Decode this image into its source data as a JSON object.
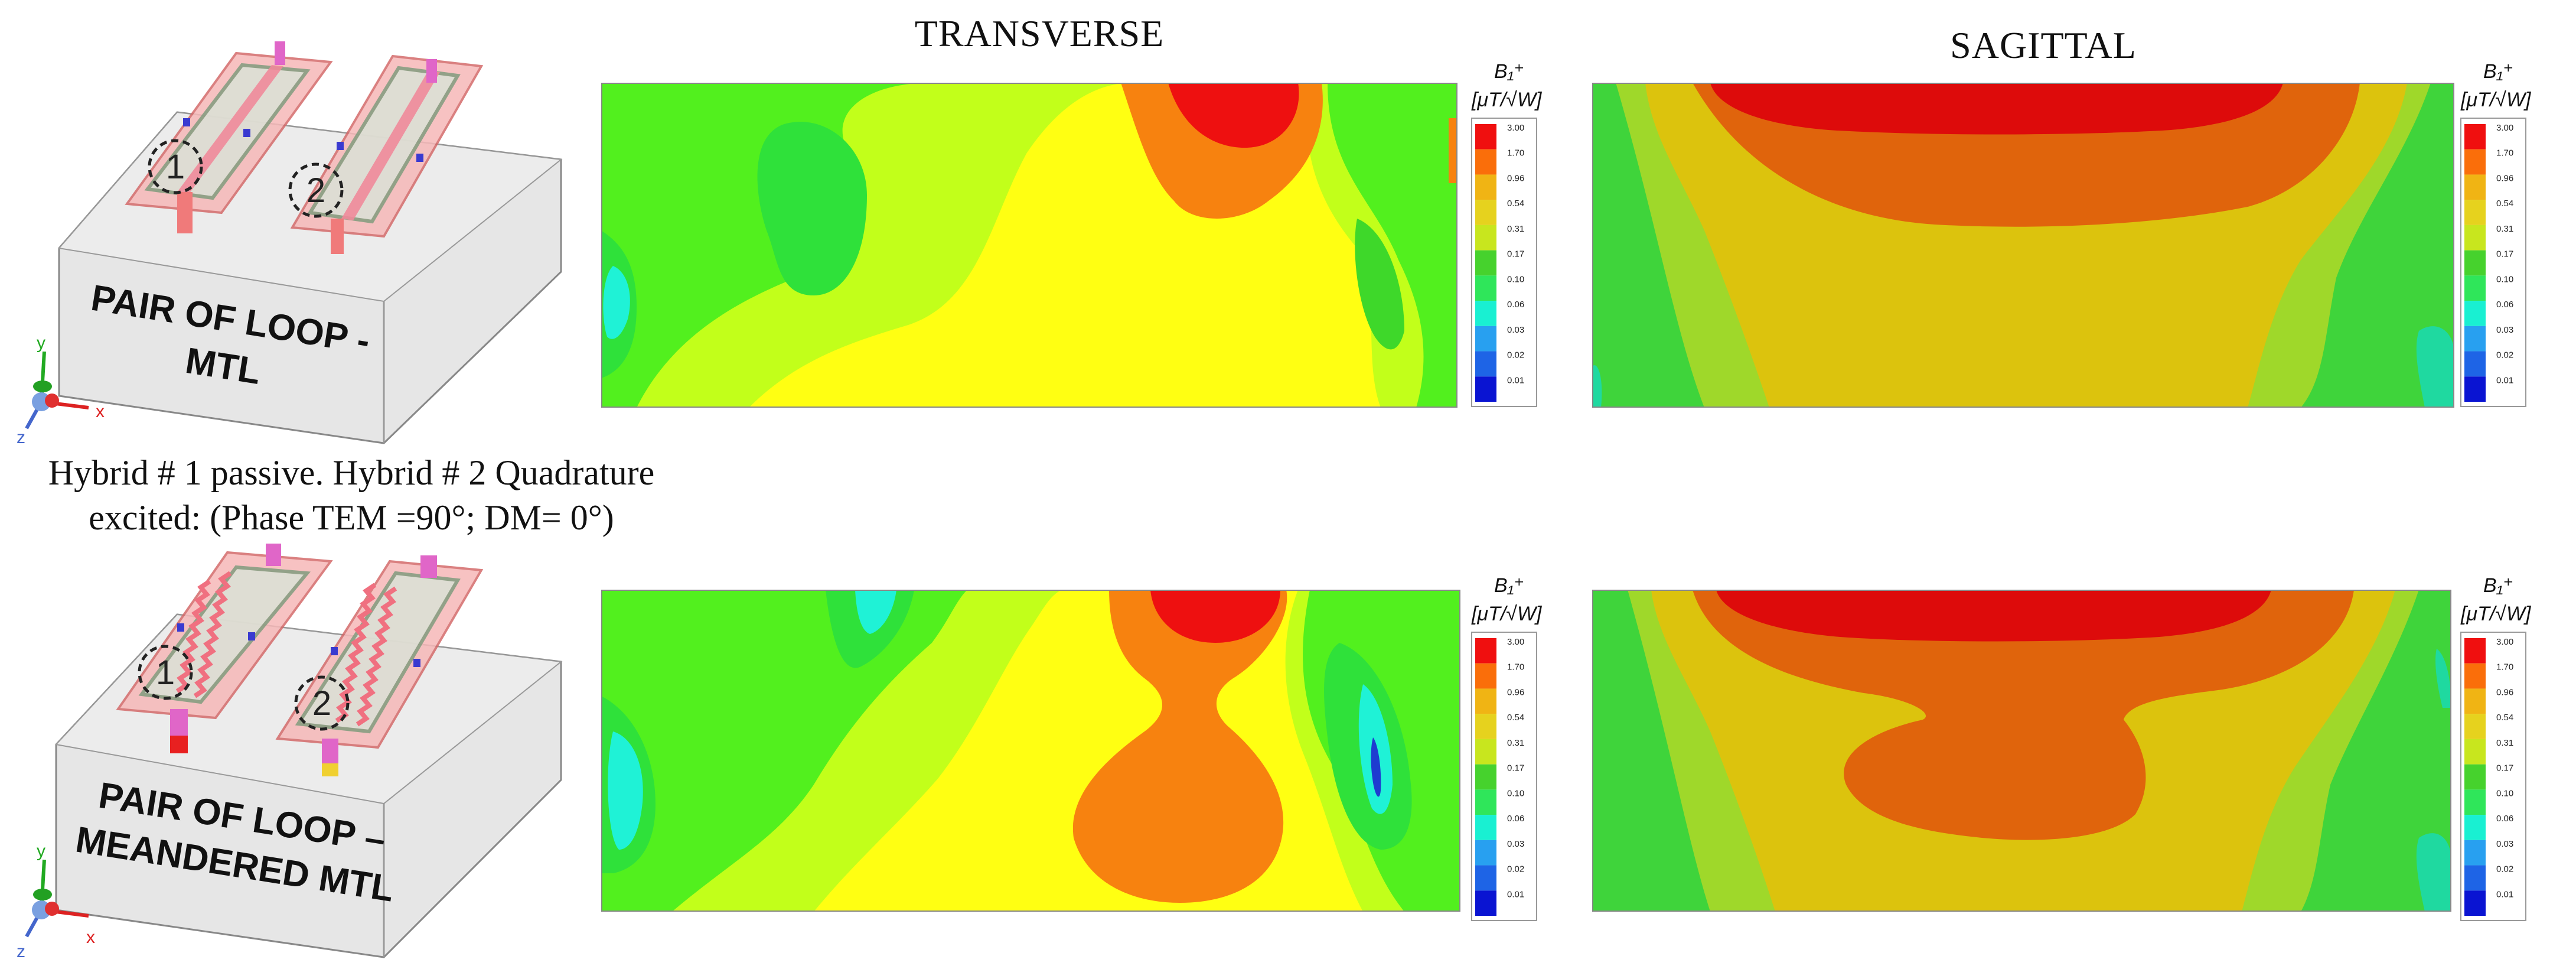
{
  "columns": {
    "transverse": "TRANSVERSE",
    "sagittal": "SAGITTAL"
  },
  "caption": {
    "line1": "Hybrid # 1 passive. Hybrid # 2 Quadrature",
    "line2": "excited: (Phase TEM =90°; DM= 0°)"
  },
  "models": [
    {
      "label_line1": "PAIR OF LOOP -",
      "label_line2": "MTL",
      "port1": "1",
      "port2": "2"
    },
    {
      "label_line1": "PAIR OF LOOP –",
      "label_line2": "MEANDERED MTL",
      "port1": "1",
      "port2": "2"
    }
  ],
  "axes": {
    "x": "x",
    "y": "y",
    "z": "z"
  },
  "colorbar": {
    "title": "B₁⁺",
    "unit": "[μT/√W]",
    "ticks": [
      "3.00",
      "1.70",
      "0.96",
      "0.54",
      "0.31",
      "0.17",
      "0.10",
      "0.06",
      "0.03",
      "0.02",
      "0.01"
    ],
    "colors": [
      "#f00f0f",
      "#fa6e0a",
      "#f0b414",
      "#e6d21e",
      "#c8e61e",
      "#46d22d",
      "#2fe65a",
      "#19f0d2",
      "#28a0f0",
      "#1e64e6",
      "#0a14d2"
    ]
  },
  "palette": {
    "red": "#ee1010",
    "orange": "#f7820f",
    "yellow": "#ffff12",
    "lime": "#c2ff1a",
    "green": "#4ff01f",
    "cyan": "#1ff2d6",
    "dark_yellow": "#dcc30d",
    "dark_orange": "#e0640c",
    "sag_red": "#dd0b0b",
    "sag_lime": "#9fd82a",
    "sag_green": "#3fd43b"
  }
}
